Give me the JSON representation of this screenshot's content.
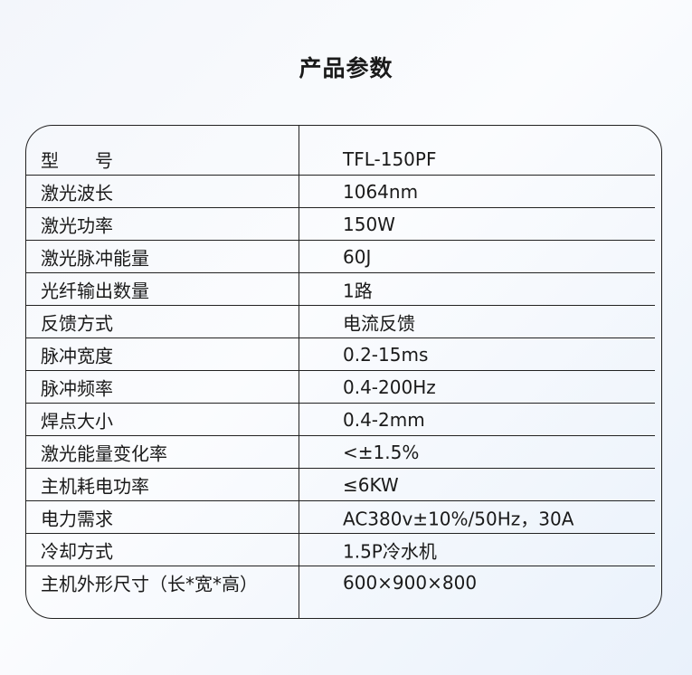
{
  "title": "产品参数",
  "rows": [
    {
      "label": "型　　号",
      "value": "TFL-150PF"
    },
    {
      "label": "激光波长",
      "value": "1064nm"
    },
    {
      "label": "激光功率",
      "value": "150W"
    },
    {
      "label": "激光脉冲能量",
      "value": "60J"
    },
    {
      "label": "光纤输出数量",
      "value": "1路"
    },
    {
      "label": "反馈方式",
      "value": "电流反馈"
    },
    {
      "label": "脉冲宽度",
      "value": "0.2-15ms"
    },
    {
      "label": "脉冲频率",
      "value": "0.4-200Hz"
    },
    {
      "label": "焊点大小",
      "value": "0.4-2mm"
    },
    {
      "label": "激光能量变化率",
      "value": "<±1.5%"
    },
    {
      "label": "主机耗电功率",
      "value": "≤6KW"
    },
    {
      "label": "电力需求",
      "value": "AC380v±10%/50Hz，30A"
    },
    {
      "label": "冷却方式",
      "value": "1.5P冷水机"
    },
    {
      "label": "主机外形尺寸（长*宽*高）",
      "value": "600×900×800"
    }
  ]
}
